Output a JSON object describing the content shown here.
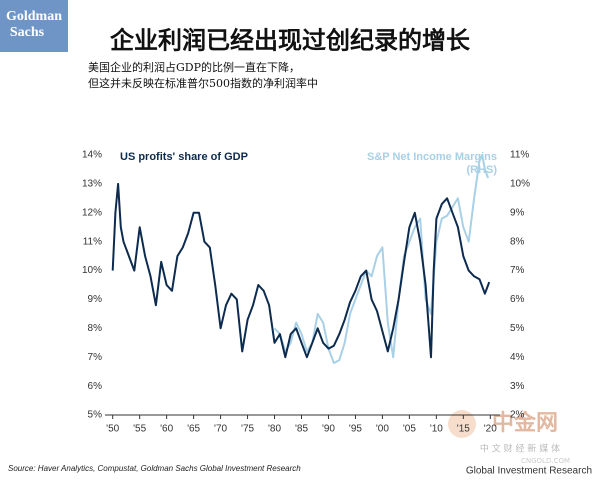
{
  "logo": [
    "Goldman",
    "Sachs"
  ],
  "chart_data": {
    "type": "line",
    "title": "企业利润已经出现过创纪录的增长",
    "subtitle": [
      "美国企业的利润占GDP的比例一直在下降，",
      "但这并未反映在标准普尔500指数的净利润率中"
    ],
    "source": "Source: Haver Analytics, Compustat, Goldman Sachs Global Investment Research",
    "watermark": [
      "中金网",
      "中 文 财 经 新 媒 体",
      "CNGOLD.COM",
      "Global Investment Research"
    ],
    "xlim": [
      1949.5,
      2020.5
    ],
    "xticks": [
      {
        "value": 1950,
        "label": "'50"
      },
      {
        "value": 1955,
        "label": "'55"
      },
      {
        "value": 1960,
        "label": "'60"
      },
      {
        "value": 1965,
        "label": "'65"
      },
      {
        "value": 1970,
        "label": "'70"
      },
      {
        "value": 1975,
        "label": "'75"
      },
      {
        "value": 1980,
        "label": "'80"
      },
      {
        "value": 1985,
        "label": "'85"
      },
      {
        "value": 1990,
        "label": "'90"
      },
      {
        "value": 1995,
        "label": "'95"
      },
      {
        "value": 2000,
        "label": "'00"
      },
      {
        "value": 2005,
        "label": "'05"
      },
      {
        "value": 2010,
        "label": "'10"
      },
      {
        "value": 2015,
        "label": "'15"
      },
      {
        "value": 2020,
        "label": "'20"
      }
    ],
    "ylim": [
      5,
      14
    ],
    "yticks": [
      {
        "value": 5,
        "label": "5%"
      },
      {
        "value": 6,
        "label": "6%"
      },
      {
        "value": 7,
        "label": "7%"
      },
      {
        "value": 8,
        "label": "8%"
      },
      {
        "value": 9,
        "label": "9%"
      },
      {
        "value": 10,
        "label": "10%"
      },
      {
        "value": 11,
        "label": "11%"
      },
      {
        "value": 12,
        "label": "12%"
      },
      {
        "value": 13,
        "label": "13%"
      },
      {
        "value": 14,
        "label": "14%"
      }
    ],
    "y2lim": [
      2,
      11
    ],
    "y2ticks": [
      {
        "value": 2,
        "label": "2%"
      },
      {
        "value": 3,
        "label": "3%"
      },
      {
        "value": 4,
        "label": "4%"
      },
      {
        "value": 5,
        "label": "5%"
      },
      {
        "value": 6,
        "label": "6%"
      },
      {
        "value": 7,
        "label": "7%"
      },
      {
        "value": 8,
        "label": "8%"
      },
      {
        "value": 9,
        "label": "9%"
      },
      {
        "value": 10,
        "label": "10%"
      },
      {
        "value": 11,
        "label": "11%"
      }
    ],
    "series": [
      {
        "name": "US profits' share of GDP",
        "color": "#0d2b4e",
        "axis": "y",
        "x": [
          1950,
          1950.5,
          1951,
          1951.5,
          1952,
          1953,
          1954,
          1955,
          1956,
          1957,
          1958,
          1959,
          1960,
          1961,
          1962,
          1963,
          1964,
          1965,
          1966,
          1967,
          1968,
          1969,
          1970,
          1971,
          1972,
          1973,
          1974,
          1975,
          1976,
          1977,
          1978,
          1979,
          1980,
          1981,
          1982,
          1983,
          1984,
          1985,
          1986,
          1987,
          1988,
          1989,
          1990,
          1991,
          1992,
          1993,
          1994,
          1995,
          1996,
          1997,
          1998,
          1999,
          2000,
          2001,
          2002,
          2003,
          2004,
          2005,
          2006,
          2007,
          2008,
          2009,
          2009.5,
          2010,
          2011,
          2012,
          2013,
          2014,
          2015,
          2016,
          2017,
          2018,
          2019,
          2019.8
        ],
        "values": [
          10.0,
          12.0,
          13.0,
          11.5,
          11.0,
          10.5,
          10.0,
          11.5,
          10.5,
          9.8,
          8.8,
          10.3,
          9.5,
          9.3,
          10.5,
          10.8,
          11.3,
          12.0,
          12.0,
          11.0,
          10.8,
          9.5,
          8.0,
          8.8,
          9.2,
          9.0,
          7.2,
          8.3,
          8.8,
          9.5,
          9.3,
          8.8,
          7.5,
          7.8,
          7.0,
          7.8,
          8.0,
          7.5,
          7.0,
          7.5,
          8.0,
          7.5,
          7.3,
          7.4,
          7.8,
          8.3,
          8.9,
          9.3,
          9.8,
          10.0,
          9.0,
          8.6,
          7.9,
          7.2,
          8.0,
          9.0,
          10.3,
          11.5,
          12.0,
          11.0,
          9.5,
          7.0,
          10.0,
          11.8,
          12.3,
          12.5,
          12.0,
          11.5,
          10.5,
          10.0,
          9.8,
          9.7,
          9.2,
          9.6
        ]
      },
      {
        "name": "S&P Net Income Margins",
        "name2": "(RHS)",
        "color": "#a8d0e6",
        "axis": "y2",
        "x": [
          1980,
          1981,
          1982,
          1983,
          1984,
          1985,
          1986,
          1987,
          1988,
          1989,
          1990,
          1991,
          1992,
          1993,
          1994,
          1995,
          1996,
          1997,
          1998,
          1999,
          2000,
          2001,
          2002,
          2003,
          2004,
          2005,
          2006,
          2007,
          2008,
          2009,
          2010,
          2011,
          2012,
          2013,
          2014,
          2015,
          2016,
          2017,
          2018,
          2018.5,
          2019,
          2019.6
        ],
        "values": [
          5.0,
          4.8,
          4.2,
          4.5,
          5.2,
          4.8,
          4.2,
          4.5,
          5.5,
          5.2,
          4.3,
          3.8,
          3.9,
          4.5,
          5.5,
          6.0,
          6.5,
          7.0,
          6.8,
          7.5,
          7.8,
          5.2,
          4.0,
          6.0,
          7.5,
          8.0,
          8.5,
          8.8,
          6.0,
          5.5,
          8.0,
          8.8,
          8.9,
          9.2,
          9.5,
          8.5,
          8.0,
          9.5,
          10.8,
          11.0,
          10.5,
          10.2
        ]
      }
    ]
  }
}
